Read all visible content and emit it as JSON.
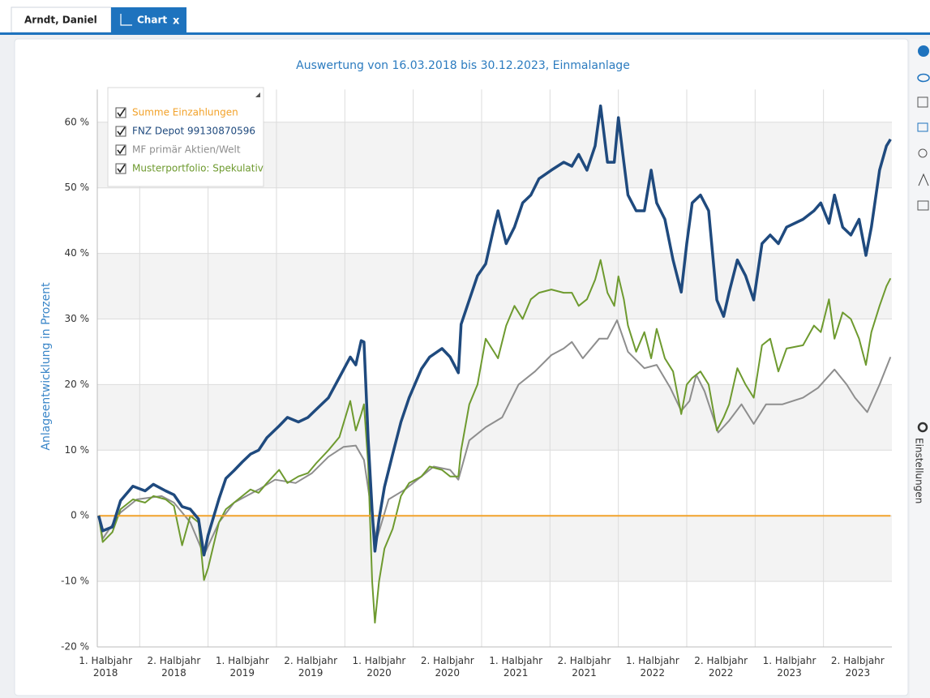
{
  "tabs": [
    "Arndt, Daniel",
    "Chart"
  ],
  "close_label": "x",
  "sidebar_label": "Einstellungen",
  "chart_data": {
    "type": "line",
    "title": "Auswertung von 16.03.2018 bis 30.12.2023, Einmalanlage",
    "y_label": "Anlageentwicklung  in Prozent",
    "xlim": [
      2018.19,
      2024.0
    ],
    "ylim": [
      -20,
      65
    ],
    "yticks": [
      {
        "value": -20,
        "label": "-20 %"
      },
      {
        "value": -10,
        "label": "-10 %"
      },
      {
        "value": 0,
        "label": "0 %"
      },
      {
        "value": 10,
        "label": "10 %"
      },
      {
        "value": 20,
        "label": "20 %"
      },
      {
        "value": 30,
        "label": "30 %"
      },
      {
        "value": 40,
        "label": "40 %"
      },
      {
        "value": 50,
        "label": "50 %"
      },
      {
        "value": 60,
        "label": "60 %"
      }
    ],
    "xticks": [
      {
        "value": 2018.25,
        "label": "1. Halbjahr 2018"
      },
      {
        "value": 2018.75,
        "label": "2. Halbjahr 2018"
      },
      {
        "value": 2019.25,
        "label": "1. Halbjahr 2019"
      },
      {
        "value": 2019.75,
        "label": "2. Halbjahr 2019"
      },
      {
        "value": 2020.25,
        "label": "1. Halbjahr 2020"
      },
      {
        "value": 2020.75,
        "label": "2. Halbjahr 2020"
      },
      {
        "value": 2021.25,
        "label": "1. Halbjahr 2021"
      },
      {
        "value": 2021.75,
        "label": "2. Halbjahr 2021"
      },
      {
        "value": 2022.25,
        "label": "1. Halbjahr 2022"
      },
      {
        "value": 2022.75,
        "label": "2. Halbjahr 2022"
      },
      {
        "value": 2023.25,
        "label": "1. Halbjahr 2023"
      },
      {
        "value": 2023.75,
        "label": "2. Halbjahr 2023"
      }
    ],
    "xgrid": [
      2018.5,
      2019,
      2019.5,
      2020,
      2020.5,
      2021,
      2021.5,
      2022,
      2022.5,
      2023,
      2023.5
    ],
    "grid": true,
    "legend": "top-left",
    "series": [
      {
        "name": "Summe Einzahlungen",
        "color": "#f2a22a",
        "width": 2,
        "x": [
          2018.2,
          2023.99
        ],
        "values": [
          0,
          0
        ]
      },
      {
        "name": "FNZ Depot 99130870596",
        "color": "#1f4a7e",
        "width": 3.5,
        "x": [
          2018.2,
          2018.23,
          2018.3,
          2018.36,
          2018.45,
          2018.54,
          2018.6,
          2018.69,
          2018.75,
          2018.81,
          2018.87,
          2018.93,
          2018.97,
          2019.0,
          2019.08,
          2019.13,
          2019.19,
          2019.25,
          2019.31,
          2019.37,
          2019.43,
          2019.52,
          2019.58,
          2019.66,
          2019.73,
          2019.79,
          2019.88,
          2019.96,
          2020.04,
          2020.08,
          2020.12,
          2020.14,
          2020.17,
          2020.2,
          2020.22,
          2020.25,
          2020.29,
          2020.35,
          2020.41,
          2020.47,
          2020.56,
          2020.62,
          2020.71,
          2020.77,
          2020.83,
          2020.85,
          2020.91,
          2020.97,
          2021.03,
          2021.09,
          2021.12,
          2021.18,
          2021.24,
          2021.3,
          2021.36,
          2021.42,
          2021.51,
          2021.6,
          2021.66,
          2021.71,
          2021.77,
          2021.83,
          2021.87,
          2021.92,
          2021.97,
          2022.0,
          2022.04,
          2022.07,
          2022.13,
          2022.19,
          2022.24,
          2022.28,
          2022.34,
          2022.4,
          2022.46,
          2022.5,
          2022.54,
          2022.6,
          2022.66,
          2022.72,
          2022.77,
          2022.81,
          2022.87,
          2022.93,
          2022.99,
          2023.05,
          2023.11,
          2023.17,
          2023.23,
          2023.35,
          2023.43,
          2023.48,
          2023.54,
          2023.58,
          2023.64,
          2023.7,
          2023.76,
          2023.81,
          2023.85,
          2023.91,
          2023.96,
          2023.99
        ],
        "values": [
          0,
          -2.3,
          -1.7,
          2.3,
          4.5,
          3.8,
          4.8,
          3.8,
          3.2,
          1.4,
          1.0,
          -0.5,
          -6,
          -3,
          2.6,
          5.7,
          6.9,
          8.2,
          9.4,
          10,
          11.9,
          13.7,
          15,
          14.3,
          15,
          16.2,
          18,
          21.1,
          24.2,
          23,
          26.7,
          26.5,
          11.9,
          0.7,
          -5.4,
          -0.5,
          4.4,
          9.4,
          14.3,
          18,
          22.4,
          24.2,
          25.5,
          24.2,
          21.8,
          29.2,
          32.9,
          36.6,
          38.4,
          44,
          46.5,
          41.5,
          44,
          47.7,
          48.9,
          51.4,
          52.7,
          53.9,
          53.3,
          55.1,
          52.7,
          56.4,
          62.5,
          53.9,
          53.9,
          60.7,
          53.9,
          48.9,
          46.5,
          46.5,
          52.7,
          47.7,
          45.2,
          39,
          34.1,
          41.5,
          47.7,
          48.9,
          46.5,
          32.9,
          30.4,
          34.1,
          39,
          36.6,
          32.9,
          41.5,
          42.8,
          41.5,
          44,
          45.2,
          46.5,
          47.7,
          44.6,
          48.9,
          44,
          42.8,
          45.2,
          39.7,
          44,
          52.7,
          56.4,
          57.4
        ]
      },
      {
        "name": "MF primär Aktien/Welt",
        "color": "#8e8e8e",
        "width": 2,
        "x": [
          2018.2,
          2018.23,
          2018.36,
          2018.48,
          2018.66,
          2018.75,
          2018.87,
          2018.97,
          2019.08,
          2019.19,
          2019.37,
          2019.49,
          2019.64,
          2019.76,
          2019.88,
          2019.99,
          2020.08,
          2020.14,
          2020.2,
          2020.23,
          2020.32,
          2020.44,
          2020.56,
          2020.65,
          2020.77,
          2020.83,
          2020.91,
          2021.03,
          2021.15,
          2021.27,
          2021.39,
          2021.51,
          2021.6,
          2021.66,
          2021.74,
          2021.86,
          2021.92,
          2021.99,
          2022.07,
          2022.19,
          2022.28,
          2022.38,
          2022.46,
          2022.52,
          2022.57,
          2022.63,
          2022.73,
          2022.81,
          2022.9,
          2022.99,
          2023.08,
          2023.2,
          2023.35,
          2023.46,
          2023.58,
          2023.67,
          2023.73,
          2023.82,
          2023.91,
          2023.99
        ],
        "values": [
          0,
          -3.5,
          0.5,
          2.5,
          3,
          2,
          -1,
          -6,
          -1,
          2,
          4,
          5.5,
          5,
          6.5,
          9,
          10.5,
          10.7,
          8.5,
          0,
          -3.8,
          2.5,
          4,
          6,
          7.5,
          7,
          5.5,
          11.5,
          13.5,
          15,
          20,
          22,
          24.5,
          25.5,
          26.5,
          24,
          27,
          27,
          29.8,
          25,
          22.5,
          23,
          19.5,
          16,
          17.5,
          21.5,
          19,
          12.7,
          14.5,
          17,
          14,
          17,
          17,
          18,
          19.5,
          22.3,
          20,
          18,
          15.8,
          20,
          24.2
        ]
      },
      {
        "name": "Musterportfolio: Spekulativ",
        "color": "#6e9a2f",
        "width": 2,
        "x": [
          2018.2,
          2018.23,
          2018.3,
          2018.36,
          2018.45,
          2018.54,
          2018.6,
          2018.69,
          2018.75,
          2018.81,
          2018.87,
          2018.93,
          2018.97,
          2019.0,
          2019.08,
          2019.13,
          2019.19,
          2019.25,
          2019.31,
          2019.37,
          2019.43,
          2019.52,
          2019.58,
          2019.66,
          2019.73,
          2019.79,
          2019.88,
          2019.96,
          2020.04,
          2020.08,
          2020.12,
          2020.14,
          2020.17,
          2020.2,
          2020.22,
          2020.25,
          2020.29,
          2020.35,
          2020.41,
          2020.47,
          2020.56,
          2020.62,
          2020.71,
          2020.77,
          2020.83,
          2020.85,
          2020.91,
          2020.97,
          2021.03,
          2021.09,
          2021.12,
          2021.18,
          2021.24,
          2021.3,
          2021.36,
          2021.42,
          2021.51,
          2021.6,
          2021.66,
          2021.71,
          2021.77,
          2021.83,
          2021.87,
          2021.92,
          2021.97,
          2022.0,
          2022.04,
          2022.07,
          2022.13,
          2022.19,
          2022.24,
          2022.28,
          2022.34,
          2022.4,
          2022.46,
          2022.5,
          2022.54,
          2022.6,
          2022.66,
          2022.72,
          2022.77,
          2022.81,
          2022.87,
          2022.93,
          2022.99,
          2023.05,
          2023.11,
          2023.17,
          2023.23,
          2023.35,
          2023.43,
          2023.48,
          2023.54,
          2023.58,
          2023.64,
          2023.7,
          2023.76,
          2023.81,
          2023.85,
          2023.91,
          2023.96,
          2023.99
        ],
        "values": [
          0,
          -4,
          -2.5,
          1,
          2.5,
          2,
          3,
          2.5,
          1.5,
          -4.5,
          0,
          -1,
          -9.8,
          -8,
          -1,
          1,
          2,
          3,
          4,
          3.5,
          5,
          7,
          5,
          6,
          6.5,
          8,
          10,
          12,
          17.5,
          13,
          15.5,
          17,
          8,
          -10,
          -16.3,
          -10,
          -5,
          -2,
          3,
          5,
          6,
          7.5,
          7,
          6,
          6,
          10,
          17,
          20,
          27,
          25,
          24,
          29,
          32,
          30,
          33,
          34,
          34.5,
          34,
          34,
          32,
          33,
          36,
          39,
          34,
          32,
          36.5,
          33,
          29,
          25,
          28,
          24,
          28.5,
          24,
          22,
          15.5,
          20,
          21,
          22,
          20,
          13,
          15,
          17,
          22.5,
          20,
          18,
          26,
          27,
          22,
          25.5,
          26,
          29,
          28,
          33,
          27,
          31,
          30,
          27,
          23,
          28,
          32,
          35,
          36.2
        ]
      }
    ]
  }
}
